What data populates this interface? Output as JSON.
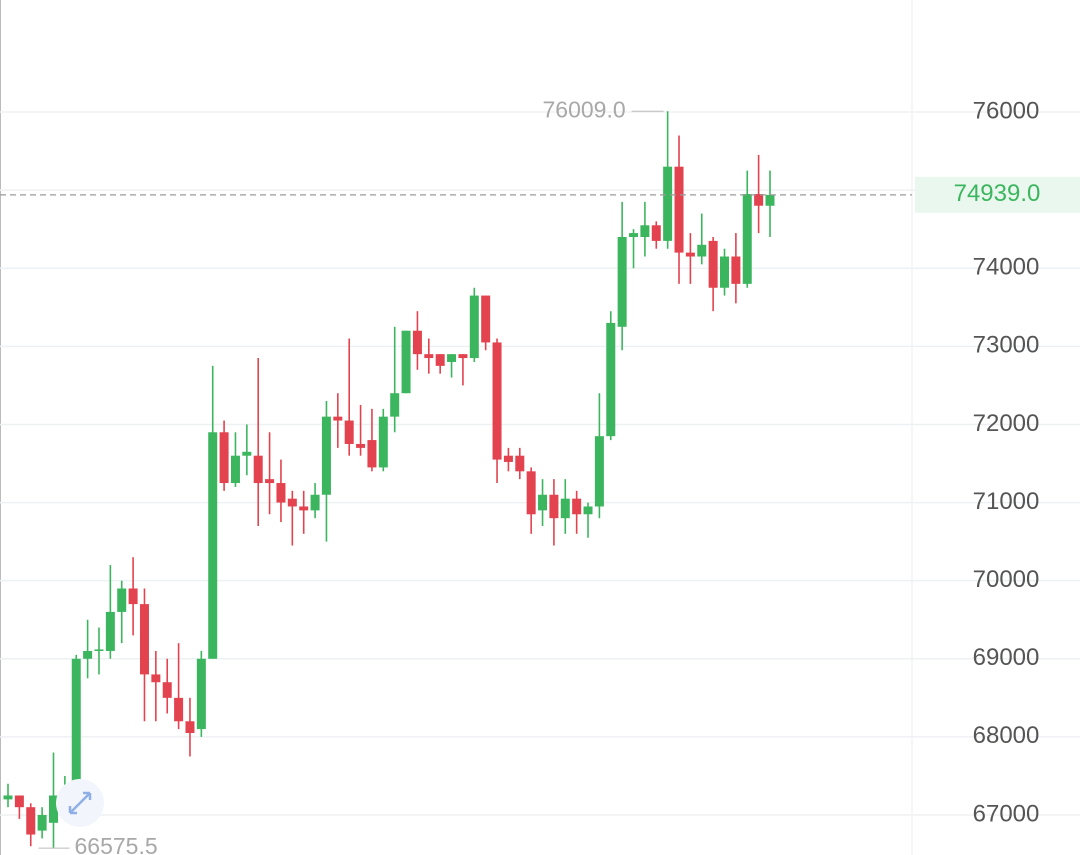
{
  "chart_data": {
    "type": "candlestick",
    "up_color": "#3cb65e",
    "down_color": "#e2434f",
    "ylim": [
      66488,
      77434
    ],
    "yticks": [
      67000,
      68000,
      69000,
      70000,
      71000,
      72000,
      73000,
      74000,
      75000,
      76000
    ],
    "yticks_hidden": [
      75000
    ],
    "grid": true,
    "candles": [
      [
        67200,
        67400,
        67100,
        67250
      ],
      [
        67250,
        67250,
        66950,
        67100
      ],
      [
        67100,
        67150,
        66600,
        66750
      ],
      [
        66800,
        67100,
        66700,
        67000
      ],
      [
        66900,
        67800,
        66575.5,
        67250
      ],
      [
        67250,
        67500,
        67100,
        67300
      ],
      [
        67300,
        69050,
        67300,
        69000
      ],
      [
        69000,
        69500,
        68750,
        69100
      ],
      [
        69100,
        69400,
        68800,
        69120
      ],
      [
        69100,
        70200,
        69000,
        69600
      ],
      [
        69600,
        70000,
        69200,
        69900
      ],
      [
        69900,
        70300,
        69300,
        69700
      ],
      [
        69700,
        69900,
        68200,
        68800
      ],
      [
        68800,
        69100,
        68200,
        68700
      ],
      [
        68700,
        69000,
        68300,
        68500
      ],
      [
        68500,
        69200,
        68100,
        68200
      ],
      [
        68200,
        68500,
        67750,
        68050
      ],
      [
        68100,
        69100,
        68000,
        69000
      ],
      [
        69000,
        72750,
        69000,
        71900
      ],
      [
        71900,
        72050,
        71150,
        71250
      ],
      [
        71250,
        71900,
        71200,
        71600
      ],
      [
        71600,
        72000,
        71350,
        71650
      ],
      [
        71600,
        72850,
        70700,
        71250
      ],
      [
        71300,
        71900,
        70850,
        71250
      ],
      [
        71250,
        71550,
        70750,
        71000
      ],
      [
        71050,
        71150,
        70450,
        70950
      ],
      [
        70950,
        71150,
        70600,
        70900
      ],
      [
        70900,
        71250,
        70800,
        71100
      ],
      [
        71100,
        72300,
        70500,
        72100
      ],
      [
        72100,
        72400,
        71700,
        72050
      ],
      [
        72050,
        73100,
        71600,
        71750
      ],
      [
        71750,
        72250,
        71600,
        71700
      ],
      [
        71800,
        72200,
        71400,
        71450
      ],
      [
        71450,
        72200,
        71400,
        72100
      ],
      [
        72100,
        73250,
        71900,
        72400
      ],
      [
        72400,
        73200,
        72400,
        73200
      ],
      [
        73200,
        73450,
        72700,
        72900
      ],
      [
        72900,
        73100,
        72650,
        72850
      ],
      [
        72900,
        72900,
        72650,
        72750
      ],
      [
        72800,
        72900,
        72600,
        72900
      ],
      [
        72900,
        72900,
        72500,
        72850
      ],
      [
        72850,
        73750,
        72800,
        73650
      ],
      [
        73650,
        73650,
        72950,
        73050
      ],
      [
        73050,
        73100,
        71250,
        71550
      ],
      [
        71600,
        71700,
        71400,
        71520
      ],
      [
        71600,
        71700,
        71300,
        71400
      ],
      [
        71400,
        71450,
        70600,
        70850
      ],
      [
        70900,
        71300,
        70700,
        71100
      ],
      [
        71100,
        71300,
        70450,
        70800
      ],
      [
        70800,
        71300,
        70600,
        71050
      ],
      [
        71050,
        71150,
        70600,
        70850
      ],
      [
        70850,
        71000,
        70550,
        70950
      ],
      [
        70950,
        72400,
        70800,
        71850
      ],
      [
        71850,
        73450,
        71800,
        73300
      ],
      [
        73250,
        74850,
        72950,
        74400
      ],
      [
        74400,
        74500,
        74000,
        74450
      ],
      [
        74400,
        74850,
        74150,
        74550
      ],
      [
        74550,
        74600,
        74250,
        74350
      ],
      [
        74350,
        76009,
        74250,
        75300
      ],
      [
        75300,
        75700,
        73800,
        74200
      ],
      [
        74200,
        74450,
        73800,
        74150
      ],
      [
        74150,
        74700,
        74050,
        74300
      ],
      [
        74350,
        74400,
        73450,
        73750
      ],
      [
        73750,
        74250,
        73650,
        74150
      ],
      [
        74150,
        74450,
        73550,
        73800
      ],
      [
        73800,
        75250,
        73750,
        74950
      ],
      [
        74950,
        75450,
        74450,
        74800
      ],
      [
        74800,
        75250,
        74400,
        74939
      ]
    ],
    "max_label": {
      "value": 76009,
      "label": "76009.0"
    },
    "min_label": {
      "value": 66575.5,
      "label": "66575.5"
    },
    "last_price": {
      "value": 74939,
      "label": "74939.0"
    }
  }
}
